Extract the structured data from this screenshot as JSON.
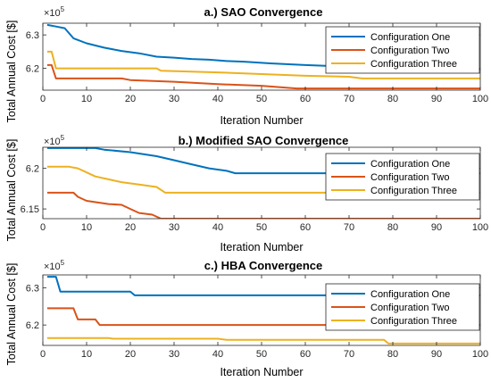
{
  "ylabel": "Total Annual Cost [$]",
  "colors": {
    "s1": "#0072BD",
    "s2": "#D95319",
    "s3": "#EDB120"
  },
  "chart_data": [
    {
      "type": "line",
      "title": "a.) SAO Convergence",
      "xlabel": "Iteration Number",
      "exponent_label": "×10",
      "exponent_power": "5",
      "xlim": [
        0,
        100
      ],
      "ylim": [
        6.135,
        6.335
      ],
      "xticks": [
        0,
        10,
        20,
        30,
        40,
        50,
        60,
        70,
        80,
        90,
        100
      ],
      "yticks": [
        6.2,
        6.3
      ],
      "ytick_labels": [
        "6.2",
        "6.3"
      ],
      "legend_position": "top-right",
      "series": [
        {
          "name": "Configuration One",
          "color": "#0072BD",
          "points": [
            [
              1,
              6.33
            ],
            [
              3,
              6.325
            ],
            [
              5,
              6.32
            ],
            [
              7,
              6.29
            ],
            [
              10,
              6.275
            ],
            [
              14,
              6.262
            ],
            [
              18,
              6.252
            ],
            [
              22,
              6.245
            ],
            [
              26,
              6.235
            ],
            [
              30,
              6.232
            ],
            [
              34,
              6.228
            ],
            [
              38,
              6.226
            ],
            [
              42,
              6.222
            ],
            [
              46,
              6.22
            ],
            [
              52,
              6.215
            ],
            [
              60,
              6.21
            ],
            [
              66,
              6.207
            ],
            [
              72,
              6.205
            ],
            [
              78,
              6.2
            ],
            [
              84,
              6.198
            ],
            [
              90,
              6.195
            ],
            [
              97,
              6.195
            ],
            [
              100,
              6.198
            ]
          ]
        },
        {
          "name": "Configuration Two",
          "color": "#D95319",
          "points": [
            [
              1,
              6.21
            ],
            [
              2,
              6.21
            ],
            [
              3,
              6.17
            ],
            [
              18,
              6.17
            ],
            [
              20,
              6.165
            ],
            [
              30,
              6.16
            ],
            [
              40,
              6.153
            ],
            [
              50,
              6.148
            ],
            [
              58,
              6.14
            ],
            [
              100,
              6.14
            ]
          ]
        },
        {
          "name": "Configuration Three",
          "color": "#EDB120",
          "points": [
            [
              1,
              6.25
            ],
            [
              2,
              6.25
            ],
            [
              3,
              6.2
            ],
            [
              18,
              6.2
            ],
            [
              26,
              6.2
            ],
            [
              27,
              6.193
            ],
            [
              40,
              6.188
            ],
            [
              50,
              6.183
            ],
            [
              60,
              6.178
            ],
            [
              70,
              6.175
            ],
            [
              73,
              6.17
            ],
            [
              100,
              6.17
            ]
          ]
        }
      ]
    },
    {
      "type": "line",
      "title": "b.) Modified SAO Convergence",
      "xlabel": "Iteration Number",
      "exponent_label": "×10",
      "exponent_power": "5",
      "xlim": [
        0,
        100
      ],
      "ylim": [
        6.138,
        6.226
      ],
      "xticks": [
        0,
        10,
        20,
        30,
        40,
        50,
        60,
        70,
        80,
        90,
        100
      ],
      "yticks": [
        6.15,
        6.2
      ],
      "ytick_labels": [
        "6.15",
        "6.2"
      ],
      "legend_position": "right",
      "series": [
        {
          "name": "Configuration One",
          "color": "#0072BD",
          "points": [
            [
              1,
              6.225
            ],
            [
              12,
              6.225
            ],
            [
              14,
              6.223
            ],
            [
              20,
              6.22
            ],
            [
              26,
              6.215
            ],
            [
              30,
              6.21
            ],
            [
              34,
              6.205
            ],
            [
              38,
              6.2
            ],
            [
              42,
              6.197
            ],
            [
              44,
              6.194
            ],
            [
              100,
              6.194
            ]
          ]
        },
        {
          "name": "Configuration Two",
          "color": "#D95319",
          "points": [
            [
              1,
              6.17
            ],
            [
              7,
              6.17
            ],
            [
              8,
              6.165
            ],
            [
              10,
              6.16
            ],
            [
              15,
              6.156
            ],
            [
              18,
              6.155
            ],
            [
              20,
              6.15
            ],
            [
              22,
              6.145
            ],
            [
              25,
              6.143
            ],
            [
              27,
              6.138
            ],
            [
              100,
              6.138
            ]
          ]
        },
        {
          "name": "Configuration Three",
          "color": "#EDB120",
          "points": [
            [
              1,
              6.202
            ],
            [
              6,
              6.202
            ],
            [
              8,
              6.2
            ],
            [
              12,
              6.19
            ],
            [
              18,
              6.183
            ],
            [
              22,
              6.18
            ],
            [
              26,
              6.177
            ],
            [
              28,
              6.17
            ],
            [
              100,
              6.17
            ]
          ]
        }
      ]
    },
    {
      "type": "line",
      "title": "c.) HBA Convergence",
      "xlabel": "Iteration Number",
      "exponent_label": "×10",
      "exponent_power": "5",
      "xlim": [
        0,
        100
      ],
      "ylim": [
        6.145,
        6.335
      ],
      "xticks": [
        0,
        10,
        20,
        30,
        40,
        50,
        60,
        70,
        80,
        90,
        100
      ],
      "yticks": [
        6.2,
        6.3
      ],
      "ytick_labels": [
        "6.2",
        "6.3"
      ],
      "legend_position": "right",
      "series": [
        {
          "name": "Configuration One",
          "color": "#0072BD",
          "points": [
            [
              1,
              6.33
            ],
            [
              3,
              6.33
            ],
            [
              4,
              6.29
            ],
            [
              20,
              6.29
            ],
            [
              21,
              6.28
            ],
            [
              100,
              6.28
            ]
          ]
        },
        {
          "name": "Configuration Two",
          "color": "#D95319",
          "points": [
            [
              1,
              6.245
            ],
            [
              7,
              6.245
            ],
            [
              8,
              6.215
            ],
            [
              12,
              6.215
            ],
            [
              13,
              6.2
            ],
            [
              100,
              6.2
            ]
          ]
        },
        {
          "name": "Configuration Three",
          "color": "#EDB120",
          "points": [
            [
              1,
              6.165
            ],
            [
              15,
              6.165
            ],
            [
              16,
              6.163
            ],
            [
              40,
              6.163
            ],
            [
              42,
              6.16
            ],
            [
              78,
              6.16
            ],
            [
              79,
              6.15
            ],
            [
              100,
              6.15
            ]
          ]
        }
      ]
    }
  ]
}
